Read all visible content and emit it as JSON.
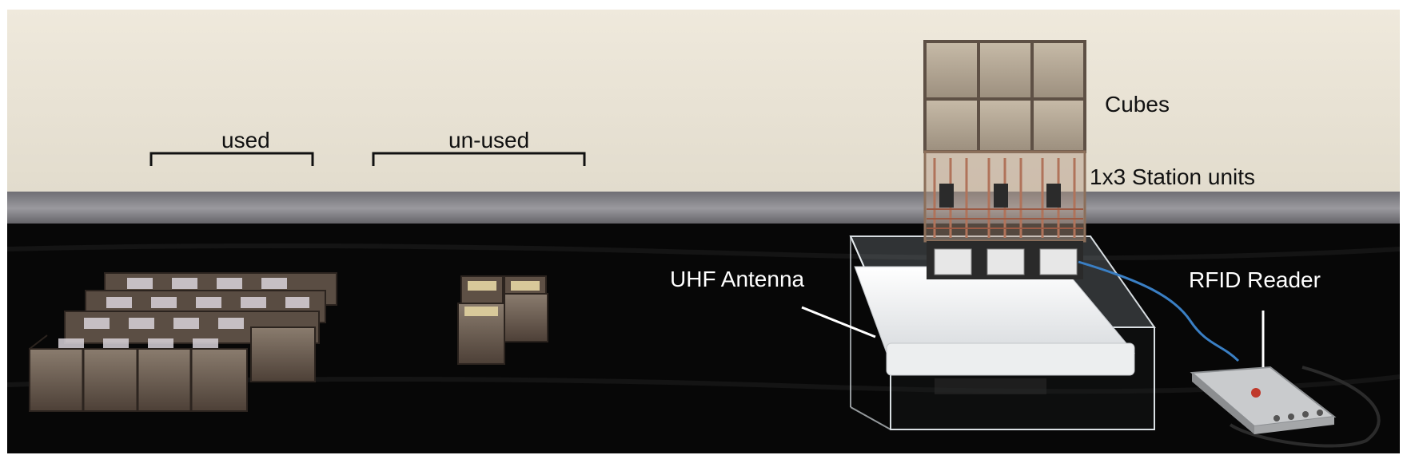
{
  "labels": {
    "used": "used",
    "unused": "un-used",
    "cubes": "Cubes",
    "station_units": "1x3 Station units",
    "uhf_antenna": "UHF Antenna",
    "rfid_reader": "RFID Reader"
  },
  "colors": {
    "wall": "#ece6d8",
    "baseboard": "#8e8d93",
    "table_cloth": "#070707",
    "cube_frame": "#5e5045",
    "acrylic": "#dfe6ea",
    "antenna_panel": "#f4f4f4",
    "cable": "#3a7fc4"
  }
}
